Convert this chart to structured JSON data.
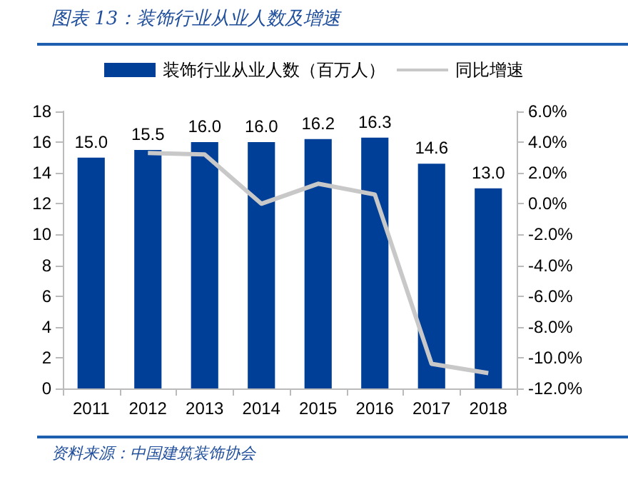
{
  "chart_data": {
    "type": "bar",
    "title": "图表 13：装饰行业从业人数及增速",
    "categories": [
      "2011",
      "2012",
      "2013",
      "2014",
      "2015",
      "2016",
      "2017",
      "2018"
    ],
    "series": [
      {
        "name": "装饰行业从业人数（百万人）",
        "color": "#003f98",
        "values": [
          15.0,
          15.5,
          16.0,
          16.0,
          16.2,
          16.3,
          14.6,
          13.0
        ],
        "value_labels": [
          "15.0",
          "15.5",
          "16.0",
          "16.0",
          "16.2",
          "16.3",
          "14.6",
          "13.0"
        ]
      },
      {
        "name": "同比增速",
        "type": "line",
        "axis": "y2",
        "color": "#c8c8c8",
        "values": [
          null,
          3.3,
          3.2,
          0.0,
          1.3,
          0.6,
          -10.4,
          -11.0
        ]
      }
    ],
    "ylim": [
      0,
      18
    ],
    "yticks": [
      0,
      2,
      4,
      6,
      8,
      10,
      12,
      14,
      16,
      18
    ],
    "y2lim": [
      -12,
      6
    ],
    "y2ticks": [
      {
        "value": -12,
        "label": "-12.0%"
      },
      {
        "value": -10,
        "label": "-10.0%"
      },
      {
        "value": -8,
        "label": "-8.0%"
      },
      {
        "value": -6,
        "label": "-6.0%"
      },
      {
        "value": -4,
        "label": "-4.0%"
      },
      {
        "value": -2,
        "label": "-2.0%"
      },
      {
        "value": 0,
        "label": "0.0%"
      },
      {
        "value": 2,
        "label": "2.0%"
      },
      {
        "value": 4,
        "label": "4.0%"
      },
      {
        "value": 6,
        "label": "6.0%"
      }
    ],
    "legend": "top",
    "grid": false,
    "marker": "none",
    "annotations": [
      "资料来源：中国建筑装饰协会"
    ]
  }
}
